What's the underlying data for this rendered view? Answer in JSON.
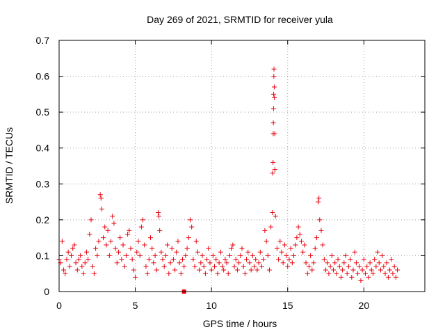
{
  "chart_data": {
    "type": "scatter",
    "title": "Day 269 of 2021, SRMTID for receiver yula",
    "xlabel": "GPS time / hours",
    "ylabel": "SRMTID / TECUs",
    "xlim": [
      0,
      24
    ],
    "ylim": [
      0,
      0.7
    ],
    "x_ticks": [
      "0",
      "5",
      "10",
      "15",
      "20"
    ],
    "y_ticks": [
      "0",
      "0.1",
      "0.2",
      "0.3",
      "0.4",
      "0.5",
      "0.6",
      "0.7"
    ],
    "grid": true,
    "marker": "plus",
    "color": "#e8000b",
    "series": [
      {
        "name": "SRMTID",
        "points": [
          [
            0.0,
            0.09
          ],
          [
            0.1,
            0.08
          ],
          [
            0.2,
            0.14
          ],
          [
            0.3,
            0.06
          ],
          [
            0.4,
            0.05
          ],
          [
            0.5,
            0.09
          ],
          [
            0.6,
            0.11
          ],
          [
            0.7,
            0.07
          ],
          [
            0.8,
            0.1
          ],
          [
            0.9,
            0.12
          ],
          [
            1.0,
            0.13
          ],
          [
            1.1,
            0.08
          ],
          [
            1.2,
            0.06
          ],
          [
            1.3,
            0.09
          ],
          [
            1.4,
            0.1
          ],
          [
            1.5,
            0.07
          ],
          [
            1.6,
            0.05
          ],
          [
            1.7,
            0.08
          ],
          [
            1.8,
            0.11
          ],
          [
            1.9,
            0.09
          ],
          [
            2.0,
            0.16
          ],
          [
            2.1,
            0.2
          ],
          [
            2.2,
            0.07
          ],
          [
            2.3,
            0.05
          ],
          [
            2.4,
            0.12
          ],
          [
            2.5,
            0.1
          ],
          [
            2.6,
            0.14
          ],
          [
            2.7,
            0.27
          ],
          [
            2.75,
            0.26
          ],
          [
            2.8,
            0.23
          ],
          [
            2.9,
            0.15
          ],
          [
            3.0,
            0.18
          ],
          [
            3.1,
            0.13
          ],
          [
            3.2,
            0.17
          ],
          [
            3.3,
            0.1
          ],
          [
            3.4,
            0.14
          ],
          [
            3.5,
            0.21
          ],
          [
            3.6,
            0.19
          ],
          [
            3.7,
            0.12
          ],
          [
            3.8,
            0.08
          ],
          [
            3.9,
            0.11
          ],
          [
            4.0,
            0.15
          ],
          [
            4.1,
            0.09
          ],
          [
            4.2,
            0.13
          ],
          [
            4.3,
            0.07
          ],
          [
            4.4,
            0.1
          ],
          [
            4.5,
            0.16
          ],
          [
            4.6,
            0.17
          ],
          [
            4.7,
            0.12
          ],
          [
            4.8,
            0.09
          ],
          [
            4.9,
            0.06
          ],
          [
            5.0,
            0.04
          ],
          [
            5.1,
            0.11
          ],
          [
            5.2,
            0.14
          ],
          [
            5.3,
            0.1
          ],
          [
            5.4,
            0.18
          ],
          [
            5.5,
            0.2
          ],
          [
            5.6,
            0.13
          ],
          [
            5.7,
            0.07
          ],
          [
            5.8,
            0.05
          ],
          [
            5.9,
            0.09
          ],
          [
            6.0,
            0.15
          ],
          [
            6.1,
            0.12
          ],
          [
            6.2,
            0.08
          ],
          [
            6.3,
            0.1
          ],
          [
            6.4,
            0.06
          ],
          [
            6.5,
            0.22
          ],
          [
            6.55,
            0.21
          ],
          [
            6.6,
            0.17
          ],
          [
            6.7,
            0.11
          ],
          [
            6.8,
            0.09
          ],
          [
            6.9,
            0.07
          ],
          [
            7.0,
            0.1
          ],
          [
            7.1,
            0.13
          ],
          [
            7.2,
            0.05
          ],
          [
            7.3,
            0.08
          ],
          [
            7.4,
            0.12
          ],
          [
            7.5,
            0.09
          ],
          [
            7.6,
            0.06
          ],
          [
            7.7,
            0.11
          ],
          [
            7.8,
            0.14
          ],
          [
            7.9,
            0.08
          ],
          [
            8.0,
            0.05
          ],
          [
            8.1,
            0.09
          ],
          [
            8.2,
            0.07
          ],
          [
            8.3,
            0.1
          ],
          [
            8.4,
            0.12
          ],
          [
            8.5,
            0.15
          ],
          [
            8.6,
            0.2
          ],
          [
            8.7,
            0.18
          ],
          [
            8.8,
            0.09
          ],
          [
            8.9,
            0.07
          ],
          [
            9.0,
            0.14
          ],
          [
            9.1,
            0.11
          ],
          [
            9.2,
            0.06
          ],
          [
            9.3,
            0.08
          ],
          [
            9.4,
            0.1
          ],
          [
            9.5,
            0.07
          ],
          [
            9.6,
            0.05
          ],
          [
            9.7,
            0.09
          ],
          [
            9.8,
            0.12
          ],
          [
            9.9,
            0.08
          ],
          [
            10.0,
            0.06
          ],
          [
            10.1,
            0.1
          ],
          [
            10.2,
            0.07
          ],
          [
            10.3,
            0.09
          ],
          [
            10.4,
            0.05
          ],
          [
            10.5,
            0.08
          ],
          [
            10.6,
            0.11
          ],
          [
            10.7,
            0.07
          ],
          [
            10.8,
            0.06
          ],
          [
            10.9,
            0.09
          ],
          [
            11.0,
            0.08
          ],
          [
            11.1,
            0.05
          ],
          [
            11.2,
            0.1
          ],
          [
            11.3,
            0.12
          ],
          [
            11.4,
            0.13
          ],
          [
            11.5,
            0.07
          ],
          [
            11.6,
            0.09
          ],
          [
            11.7,
            0.06
          ],
          [
            11.8,
            0.08
          ],
          [
            11.9,
            0.1
          ],
          [
            12.0,
            0.12
          ],
          [
            12.1,
            0.07
          ],
          [
            12.2,
            0.05
          ],
          [
            12.3,
            0.09
          ],
          [
            12.4,
            0.11
          ],
          [
            12.5,
            0.08
          ],
          [
            12.6,
            0.06
          ],
          [
            12.7,
            0.1
          ],
          [
            12.8,
            0.07
          ],
          [
            12.9,
            0.09
          ],
          [
            13.0,
            0.06
          ],
          [
            13.1,
            0.08
          ],
          [
            13.2,
            0.11
          ],
          [
            13.3,
            0.07
          ],
          [
            13.4,
            0.09
          ],
          [
            13.5,
            0.17
          ],
          [
            13.6,
            0.14
          ],
          [
            13.7,
            0.1
          ],
          [
            13.8,
            0.06
          ],
          [
            13.9,
            0.18
          ],
          [
            14.0,
            0.22
          ],
          [
            14.02,
            0.33
          ],
          [
            14.04,
            0.36
          ],
          [
            14.05,
            0.44
          ],
          [
            14.06,
            0.47
          ],
          [
            14.07,
            0.51
          ],
          [
            14.08,
            0.55
          ],
          [
            14.09,
            0.6
          ],
          [
            14.1,
            0.62
          ],
          [
            14.12,
            0.57
          ],
          [
            14.13,
            0.54
          ],
          [
            14.15,
            0.44
          ],
          [
            14.16,
            0.34
          ],
          [
            14.2,
            0.21
          ],
          [
            14.3,
            0.12
          ],
          [
            14.4,
            0.09
          ],
          [
            14.5,
            0.14
          ],
          [
            14.6,
            0.11
          ],
          [
            14.7,
            0.08
          ],
          [
            14.8,
            0.13
          ],
          [
            14.9,
            0.1
          ],
          [
            15.0,
            0.07
          ],
          [
            15.1,
            0.09
          ],
          [
            15.2,
            0.12
          ],
          [
            15.3,
            0.08
          ],
          [
            15.4,
            0.1
          ],
          [
            15.5,
            0.13
          ],
          [
            15.6,
            0.15
          ],
          [
            15.7,
            0.18
          ],
          [
            15.8,
            0.16
          ],
          [
            15.9,
            0.14
          ],
          [
            16.0,
            0.11
          ],
          [
            16.1,
            0.13
          ],
          [
            16.2,
            0.08
          ],
          [
            16.3,
            0.05
          ],
          [
            16.4,
            0.07
          ],
          [
            16.5,
            0.1
          ],
          [
            16.6,
            0.06
          ],
          [
            16.7,
            0.08
          ],
          [
            16.8,
            0.12
          ],
          [
            16.9,
            0.15
          ],
          [
            17.0,
            0.25
          ],
          [
            17.05,
            0.26
          ],
          [
            17.1,
            0.2
          ],
          [
            17.2,
            0.17
          ],
          [
            17.3,
            0.13
          ],
          [
            17.4,
            0.09
          ],
          [
            17.5,
            0.06
          ],
          [
            17.6,
            0.08
          ],
          [
            17.7,
            0.05
          ],
          [
            17.8,
            0.07
          ],
          [
            17.9,
            0.1
          ],
          [
            18.0,
            0.06
          ],
          [
            18.1,
            0.08
          ],
          [
            18.2,
            0.05
          ],
          [
            18.3,
            0.09
          ],
          [
            18.4,
            0.07
          ],
          [
            18.5,
            0.04
          ],
          [
            18.6,
            0.06
          ],
          [
            18.7,
            0.08
          ],
          [
            18.8,
            0.1
          ],
          [
            18.9,
            0.05
          ],
          [
            19.0,
            0.07
          ],
          [
            19.1,
            0.09
          ],
          [
            19.2,
            0.04
          ],
          [
            19.3,
            0.06
          ],
          [
            19.4,
            0.11
          ],
          [
            19.5,
            0.08
          ],
          [
            19.6,
            0.05
          ],
          [
            19.7,
            0.07
          ],
          [
            19.8,
            0.03
          ],
          [
            19.9,
            0.06
          ],
          [
            20.0,
            0.09
          ],
          [
            20.1,
            0.05
          ],
          [
            20.2,
            0.07
          ],
          [
            20.3,
            0.04
          ],
          [
            20.4,
            0.08
          ],
          [
            20.5,
            0.06
          ],
          [
            20.6,
            0.05
          ],
          [
            20.7,
            0.09
          ],
          [
            20.8,
            0.07
          ],
          [
            20.9,
            0.11
          ],
          [
            21.0,
            0.08
          ],
          [
            21.1,
            0.06
          ],
          [
            21.2,
            0.1
          ],
          [
            21.3,
            0.07
          ],
          [
            21.4,
            0.05
          ],
          [
            21.5,
            0.08
          ],
          [
            21.6,
            0.04
          ],
          [
            21.7,
            0.06
          ],
          [
            21.8,
            0.09
          ],
          [
            21.9,
            0.05
          ],
          [
            22.0,
            0.07
          ],
          [
            22.1,
            0.04
          ],
          [
            22.2,
            0.06
          ]
        ]
      }
    ],
    "extra_marker": {
      "shape": "square",
      "x": 8.2,
      "y": 0.0
    }
  }
}
